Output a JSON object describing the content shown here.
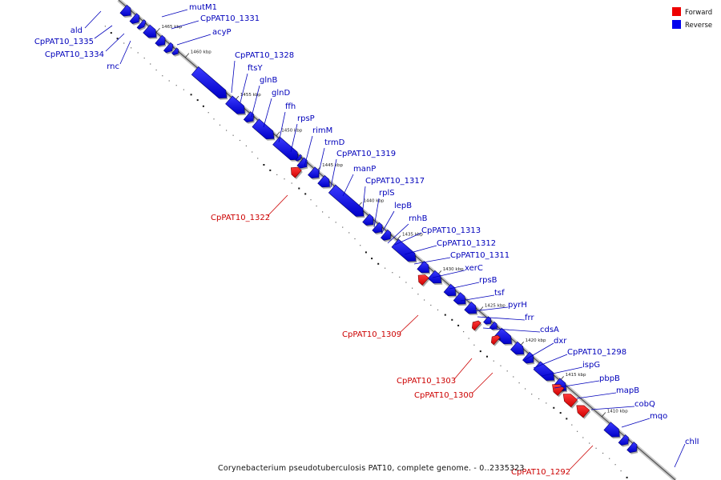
{
  "legend": [
    {
      "label": "Forward",
      "color": "#ee0000"
    },
    {
      "label": "Reverse",
      "color": "#0000ee"
    }
  ],
  "footer": "Corynebacterium pseudotuberculosis PAT10, complete genome. - 0..2335323",
  "ticks": [
    "1465 kbp",
    "1460 kbp",
    "1455 kbp",
    "1450 kbp",
    "1445 kbp",
    "1440 kbp",
    "1435 kbp",
    "1430 kbp",
    "1425 kbp",
    "1420 kbp",
    "1415 kbp",
    "1410 kbp"
  ],
  "genes": [
    {
      "name": "ald",
      "strand": "reverse"
    },
    {
      "name": "CpPAT10_1335",
      "strand": "reverse"
    },
    {
      "name": "CpPAT10_1334",
      "strand": "reverse"
    },
    {
      "name": "rnc",
      "strand": "reverse"
    },
    {
      "name": "mutM1",
      "strand": "reverse"
    },
    {
      "name": "CpPAT10_1331",
      "strand": "reverse"
    },
    {
      "name": "acyP",
      "strand": "reverse"
    },
    {
      "name": "CpPAT10_1328",
      "strand": "reverse"
    },
    {
      "name": "ftsY",
      "strand": "reverse"
    },
    {
      "name": "glnB",
      "strand": "reverse"
    },
    {
      "name": "glnD",
      "strand": "reverse"
    },
    {
      "name": "ffh",
      "strand": "reverse"
    },
    {
      "name": "rpsP",
      "strand": "reverse"
    },
    {
      "name": "rimM",
      "strand": "reverse"
    },
    {
      "name": "trmD",
      "strand": "reverse"
    },
    {
      "name": "CpPAT10_1319",
      "strand": "reverse"
    },
    {
      "name": "manP",
      "strand": "reverse"
    },
    {
      "name": "CpPAT10_1317",
      "strand": "reverse"
    },
    {
      "name": "rplS",
      "strand": "reverse"
    },
    {
      "name": "lepB",
      "strand": "reverse"
    },
    {
      "name": "rnhB",
      "strand": "reverse"
    },
    {
      "name": "CpPAT10_1313",
      "strand": "reverse"
    },
    {
      "name": "CpPAT10_1312",
      "strand": "reverse"
    },
    {
      "name": "CpPAT10_1311",
      "strand": "reverse"
    },
    {
      "name": "xerC",
      "strand": "reverse"
    },
    {
      "name": "rpsB",
      "strand": "reverse"
    },
    {
      "name": "tsf",
      "strand": "reverse"
    },
    {
      "name": "pyrH",
      "strand": "reverse"
    },
    {
      "name": "frr",
      "strand": "reverse"
    },
    {
      "name": "cdsA",
      "strand": "reverse"
    },
    {
      "name": "dxr",
      "strand": "reverse"
    },
    {
      "name": "CpPAT10_1298",
      "strand": "reverse"
    },
    {
      "name": "ispG",
      "strand": "reverse"
    },
    {
      "name": "pbpB",
      "strand": "reverse"
    },
    {
      "name": "mapB",
      "strand": "reverse"
    },
    {
      "name": "cobQ",
      "strand": "reverse"
    },
    {
      "name": "mqo",
      "strand": "reverse"
    },
    {
      "name": "chlI",
      "strand": "reverse"
    },
    {
      "name": "CpPAT10_1322",
      "strand": "forward"
    },
    {
      "name": "CpPAT10_1309",
      "strand": "forward"
    },
    {
      "name": "CpPAT10_1303",
      "strand": "forward"
    },
    {
      "name": "CpPAT10_1300",
      "strand": "forward"
    },
    {
      "name": "CpPAT10_1292",
      "strand": "forward"
    }
  ]
}
